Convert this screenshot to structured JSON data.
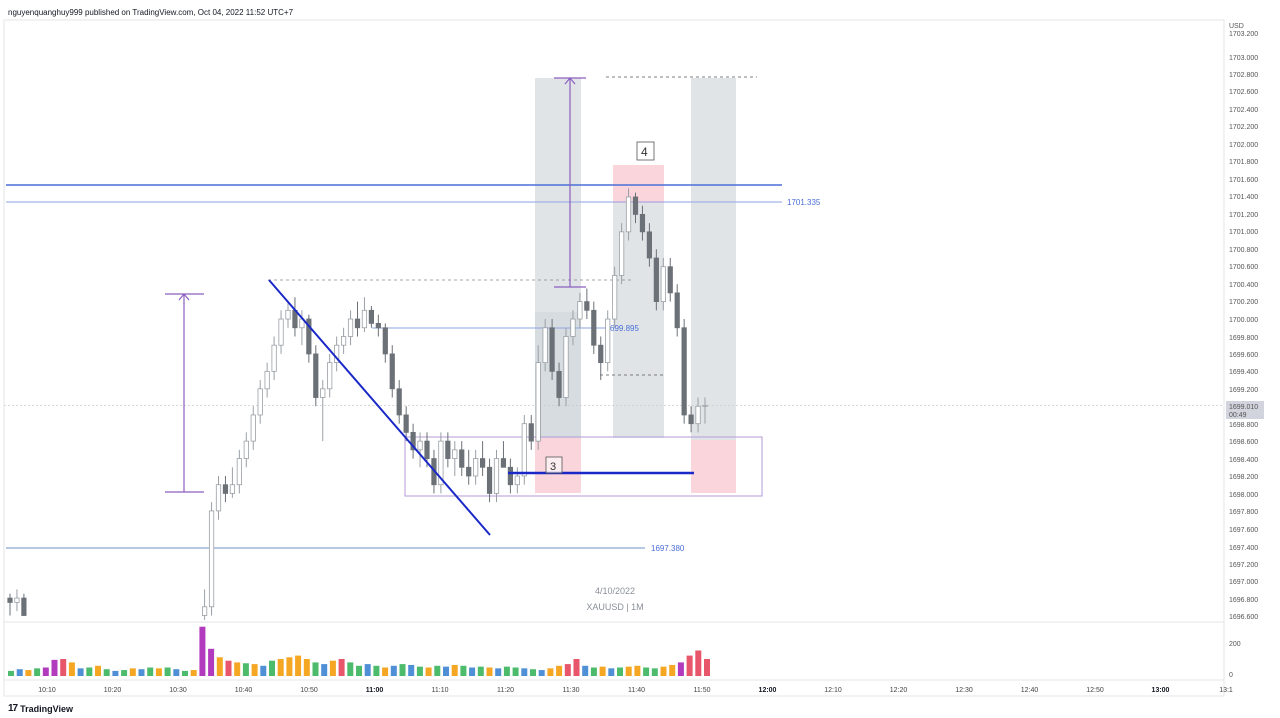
{
  "header": {
    "published_by": "nguyenquanghuy999 published on TradingView.com, Oct 04, 2022 11:52 UTC+7"
  },
  "footer": {
    "brand_logo": "17",
    "brand_name": "TradingView"
  },
  "colors": {
    "candle_up": "#9aa0a6",
    "candle_down": "#6b7177",
    "line_blue": "#4a6fd6",
    "trend_blue": "#1a28c8",
    "purple": "#8b5fbf",
    "pink_zone": "#f8c7d0",
    "grey_zone": "#c7cdd3",
    "vol_orange": "#f5a623",
    "vol_green": "#4cbb6c",
    "vol_blue": "#4f8fd6",
    "vol_magenta": "#b23bbd",
    "vol_red": "#e7566b"
  },
  "chart_data": {
    "type": "candlestick",
    "symbol": "XAUUSD | 1M",
    "watermark_date": "4/10/2022",
    "currency": "USD",
    "price_axis_ticks": [
      "1703.200",
      "1703.000",
      "1702.800",
      "1702.600",
      "1702.400",
      "1702.200",
      "1702.000",
      "1701.800",
      "1701.600",
      "1701.400",
      "1701.200",
      "1701.000",
      "1700.800",
      "1700.600",
      "1700.400",
      "1700.200",
      "1700.000",
      "1699.800",
      "1699.600",
      "1699.400",
      "1699.200",
      "1698.800",
      "1698.600",
      "1698.400",
      "1698.200",
      "1698.000",
      "1697.800",
      "1697.600",
      "1697.400",
      "1697.200",
      "1697.000",
      "1696.800",
      "1696.600"
    ],
    "ylim": [
      1696.6,
      1703.2
    ],
    "current_price": "1699.010",
    "countdown": "00:49",
    "volume_axis_ticks": [
      "200",
      "0"
    ],
    "time_ticks": [
      {
        "label": "10:10",
        "t": 10
      },
      {
        "label": "10:20",
        "t": 20
      },
      {
        "label": "10:30",
        "t": 30
      },
      {
        "label": "10:40",
        "t": 40
      },
      {
        "label": "10:50",
        "t": 50
      },
      {
        "label": "11:00",
        "t": 60,
        "bold": true
      },
      {
        "label": "11:10",
        "t": 70
      },
      {
        "label": "11:20",
        "t": 80
      },
      {
        "label": "11:30",
        "t": 90
      },
      {
        "label": "11:40",
        "t": 100
      },
      {
        "label": "11:50",
        "t": 110
      },
      {
        "label": "12:00",
        "t": 120,
        "bold": true
      },
      {
        "label": "12:10",
        "t": 130
      },
      {
        "label": "12:20",
        "t": 140
      },
      {
        "label": "12:30",
        "t": 150
      },
      {
        "label": "12:40",
        "t": 160
      },
      {
        "label": "12:50",
        "t": 170
      },
      {
        "label": "13:00",
        "t": 180,
        "bold": true
      },
      {
        "label": "13:1",
        "t": 190
      }
    ],
    "candles": [
      [
        0,
        1696.8,
        1696.85,
        1696.6,
        1696.75
      ],
      [
        1,
        1696.75,
        1696.9,
        1696.65,
        1696.8
      ],
      [
        2,
        1696.8,
        1696.85,
        1696.6,
        1696.6
      ],
      [
        28,
        1696.6,
        1696.9,
        1696.55,
        1696.7
      ],
      [
        29,
        1696.7,
        1697.9,
        1696.6,
        1697.8
      ],
      [
        30,
        1697.8,
        1698.2,
        1697.7,
        1698.1
      ],
      [
        31,
        1698.1,
        1698.2,
        1697.9,
        1698.0
      ],
      [
        32,
        1698.0,
        1698.3,
        1697.95,
        1698.1
      ],
      [
        33,
        1698.1,
        1698.5,
        1698.0,
        1698.4
      ],
      [
        34,
        1698.4,
        1698.7,
        1698.3,
        1698.6
      ],
      [
        35,
        1698.6,
        1699.0,
        1698.5,
        1698.9
      ],
      [
        36,
        1698.9,
        1699.3,
        1698.8,
        1699.2
      ],
      [
        37,
        1699.2,
        1699.5,
        1699.1,
        1699.4
      ],
      [
        38,
        1699.4,
        1699.8,
        1699.3,
        1699.7
      ],
      [
        39,
        1699.7,
        1700.1,
        1699.6,
        1700.0
      ],
      [
        40,
        1700.0,
        1700.2,
        1699.9,
        1700.1
      ],
      [
        41,
        1700.1,
        1700.25,
        1699.8,
        1699.9
      ],
      [
        42,
        1699.9,
        1700.1,
        1699.7,
        1700.0
      ],
      [
        43,
        1700.0,
        1700.05,
        1699.5,
        1699.6
      ],
      [
        44,
        1699.6,
        1699.7,
        1699.0,
        1699.1
      ],
      [
        45,
        1699.1,
        1699.3,
        1698.6,
        1699.2
      ],
      [
        46,
        1699.2,
        1699.6,
        1699.1,
        1699.5
      ],
      [
        47,
        1699.5,
        1699.8,
        1699.4,
        1699.7
      ],
      [
        48,
        1699.7,
        1699.9,
        1699.6,
        1699.8
      ],
      [
        49,
        1699.8,
        1700.1,
        1699.7,
        1700.0
      ],
      [
        50,
        1700.0,
        1700.2,
        1699.8,
        1699.9
      ],
      [
        51,
        1699.9,
        1700.25,
        1699.85,
        1700.1
      ],
      [
        52,
        1700.1,
        1700.15,
        1699.9,
        1699.95
      ],
      [
        53,
        1699.95,
        1700.05,
        1699.8,
        1699.9
      ],
      [
        54,
        1699.9,
        1699.95,
        1699.5,
        1699.6
      ],
      [
        55,
        1699.6,
        1699.7,
        1699.1,
        1699.2
      ],
      [
        56,
        1699.2,
        1699.3,
        1698.8,
        1698.9
      ],
      [
        57,
        1698.9,
        1699.0,
        1698.6,
        1698.7
      ],
      [
        58,
        1698.7,
        1698.8,
        1698.4,
        1698.5
      ],
      [
        59,
        1698.5,
        1698.7,
        1698.3,
        1698.6
      ],
      [
        60,
        1698.6,
        1698.7,
        1698.3,
        1698.4
      ],
      [
        61,
        1698.4,
        1698.5,
        1698.0,
        1698.1
      ],
      [
        62,
        1698.1,
        1698.7,
        1698.0,
        1698.6
      ],
      [
        63,
        1698.6,
        1698.7,
        1698.3,
        1698.4
      ],
      [
        64,
        1698.4,
        1698.6,
        1698.2,
        1698.5
      ],
      [
        65,
        1698.5,
        1698.6,
        1698.2,
        1698.3
      ],
      [
        66,
        1698.3,
        1698.5,
        1698.1,
        1698.2
      ],
      [
        67,
        1698.2,
        1698.5,
        1698.1,
        1698.4
      ],
      [
        68,
        1698.4,
        1698.6,
        1698.2,
        1698.3
      ],
      [
        69,
        1698.3,
        1698.4,
        1697.9,
        1698.0
      ],
      [
        70,
        1698.0,
        1698.5,
        1697.9,
        1698.4
      ],
      [
        71,
        1698.4,
        1698.6,
        1698.3,
        1698.3
      ],
      [
        72,
        1698.3,
        1698.4,
        1698.0,
        1698.1
      ],
      [
        73,
        1698.1,
        1698.3,
        1698.0,
        1698.2
      ],
      [
        74,
        1698.2,
        1698.9,
        1698.1,
        1698.8
      ],
      [
        75,
        1698.8,
        1698.9,
        1698.5,
        1698.6
      ],
      [
        76,
        1698.6,
        1699.7,
        1698.5,
        1699.5
      ],
      [
        77,
        1699.5,
        1700.0,
        1699.4,
        1699.9
      ],
      [
        78,
        1699.9,
        1700.0,
        1699.3,
        1699.4
      ],
      [
        79,
        1699.4,
        1699.5,
        1699.0,
        1699.1
      ],
      [
        80,
        1699.1,
        1699.9,
        1699.0,
        1699.8
      ],
      [
        81,
        1699.8,
        1700.1,
        1699.7,
        1700.0
      ],
      [
        82,
        1700.0,
        1700.3,
        1699.9,
        1700.2
      ],
      [
        83,
        1700.2,
        1700.35,
        1700.0,
        1700.1
      ],
      [
        84,
        1700.1,
        1700.2,
        1699.6,
        1699.7
      ],
      [
        85,
        1699.7,
        1699.8,
        1699.3,
        1699.5
      ],
      [
        86,
        1699.5,
        1700.1,
        1699.4,
        1700.0
      ],
      [
        87,
        1700.0,
        1700.6,
        1699.9,
        1700.5
      ],
      [
        88,
        1700.5,
        1701.1,
        1700.4,
        1701.0
      ],
      [
        89,
        1701.0,
        1701.5,
        1700.9,
        1701.4
      ],
      [
        90,
        1701.4,
        1701.45,
        1701.1,
        1701.2
      ],
      [
        91,
        1701.2,
        1701.3,
        1700.9,
        1701.0
      ],
      [
        92,
        1701.0,
        1701.1,
        1700.6,
        1700.7
      ],
      [
        93,
        1700.7,
        1700.8,
        1700.1,
        1700.2
      ],
      [
        94,
        1700.2,
        1700.7,
        1700.1,
        1700.6
      ],
      [
        95,
        1700.6,
        1700.7,
        1700.2,
        1700.3
      ],
      [
        96,
        1700.3,
        1700.4,
        1699.8,
        1699.9
      ],
      [
        97,
        1699.9,
        1700.0,
        1698.8,
        1698.9
      ],
      [
        98,
        1698.9,
        1699.0,
        1698.7,
        1698.8
      ],
      [
        99,
        1698.8,
        1699.1,
        1698.7,
        1699.0
      ],
      [
        100,
        1699.0,
        1699.1,
        1698.8,
        1699.01
      ]
    ],
    "volumes": [
      [
        0,
        30,
        "green"
      ],
      [
        1,
        40,
        "blue"
      ],
      [
        2,
        35,
        "orange"
      ],
      [
        3,
        45,
        "green"
      ],
      [
        4,
        50,
        "magenta"
      ],
      [
        5,
        95,
        "magenta"
      ],
      [
        6,
        100,
        "red"
      ],
      [
        7,
        80,
        "orange"
      ],
      [
        8,
        45,
        "blue"
      ],
      [
        9,
        50,
        "green"
      ],
      [
        10,
        60,
        "orange"
      ],
      [
        11,
        40,
        "green"
      ],
      [
        12,
        30,
        "blue"
      ],
      [
        13,
        35,
        "green"
      ],
      [
        14,
        45,
        "orange"
      ],
      [
        15,
        40,
        "blue"
      ],
      [
        16,
        50,
        "green"
      ],
      [
        17,
        45,
        "orange"
      ],
      [
        18,
        50,
        "green"
      ],
      [
        19,
        40,
        "blue"
      ],
      [
        20,
        30,
        "green"
      ],
      [
        21,
        35,
        "orange"
      ],
      [
        22,
        290,
        "magenta"
      ],
      [
        23,
        160,
        "magenta"
      ],
      [
        24,
        110,
        "orange"
      ],
      [
        25,
        90,
        "red"
      ],
      [
        26,
        80,
        "orange"
      ],
      [
        27,
        75,
        "green"
      ],
      [
        28,
        70,
        "orange"
      ],
      [
        29,
        60,
        "blue"
      ],
      [
        30,
        90,
        "green"
      ],
      [
        31,
        100,
        "orange"
      ],
      [
        32,
        110,
        "orange"
      ],
      [
        33,
        120,
        "orange"
      ],
      [
        34,
        100,
        "orange"
      ],
      [
        35,
        80,
        "green"
      ],
      [
        36,
        70,
        "blue"
      ],
      [
        37,
        90,
        "orange"
      ],
      [
        38,
        100,
        "red"
      ],
      [
        39,
        80,
        "green"
      ],
      [
        40,
        60,
        "green"
      ],
      [
        41,
        70,
        "blue"
      ],
      [
        42,
        60,
        "green"
      ],
      [
        43,
        50,
        "orange"
      ],
      [
        44,
        60,
        "blue"
      ],
      [
        45,
        70,
        "green"
      ],
      [
        46,
        65,
        "blue"
      ],
      [
        47,
        55,
        "green"
      ],
      [
        48,
        50,
        "orange"
      ],
      [
        49,
        60,
        "green"
      ],
      [
        50,
        55,
        "blue"
      ],
      [
        51,
        65,
        "orange"
      ],
      [
        52,
        60,
        "green"
      ],
      [
        53,
        50,
        "blue"
      ],
      [
        54,
        55,
        "green"
      ],
      [
        55,
        50,
        "orange"
      ],
      [
        56,
        45,
        "blue"
      ],
      [
        57,
        55,
        "green"
      ],
      [
        58,
        50,
        "green"
      ],
      [
        59,
        45,
        "blue"
      ],
      [
        60,
        40,
        "green"
      ],
      [
        61,
        35,
        "blue"
      ],
      [
        62,
        45,
        "orange"
      ],
      [
        63,
        60,
        "orange"
      ],
      [
        64,
        70,
        "red"
      ],
      [
        65,
        100,
        "red"
      ],
      [
        66,
        60,
        "blue"
      ],
      [
        67,
        50,
        "green"
      ],
      [
        68,
        55,
        "orange"
      ],
      [
        69,
        45,
        "blue"
      ],
      [
        70,
        50,
        "green"
      ],
      [
        71,
        55,
        "orange"
      ],
      [
        72,
        60,
        "orange"
      ],
      [
        73,
        50,
        "green"
      ],
      [
        74,
        45,
        "green"
      ],
      [
        75,
        55,
        "orange"
      ],
      [
        76,
        65,
        "orange"
      ],
      [
        77,
        80,
        "magenta"
      ],
      [
        78,
        120,
        "red"
      ],
      [
        79,
        150,
        "red"
      ],
      [
        80,
        100,
        "red"
      ]
    ],
    "annotations": {
      "labels": [
        {
          "text": "1701.335",
          "price": 1701.335
        },
        {
          "text": "699.895",
          "price": 1699.895
        },
        {
          "text": "1697.380",
          "price": 1697.38
        },
        {
          "text": "3"
        },
        {
          "text": "4"
        }
      ]
    }
  }
}
